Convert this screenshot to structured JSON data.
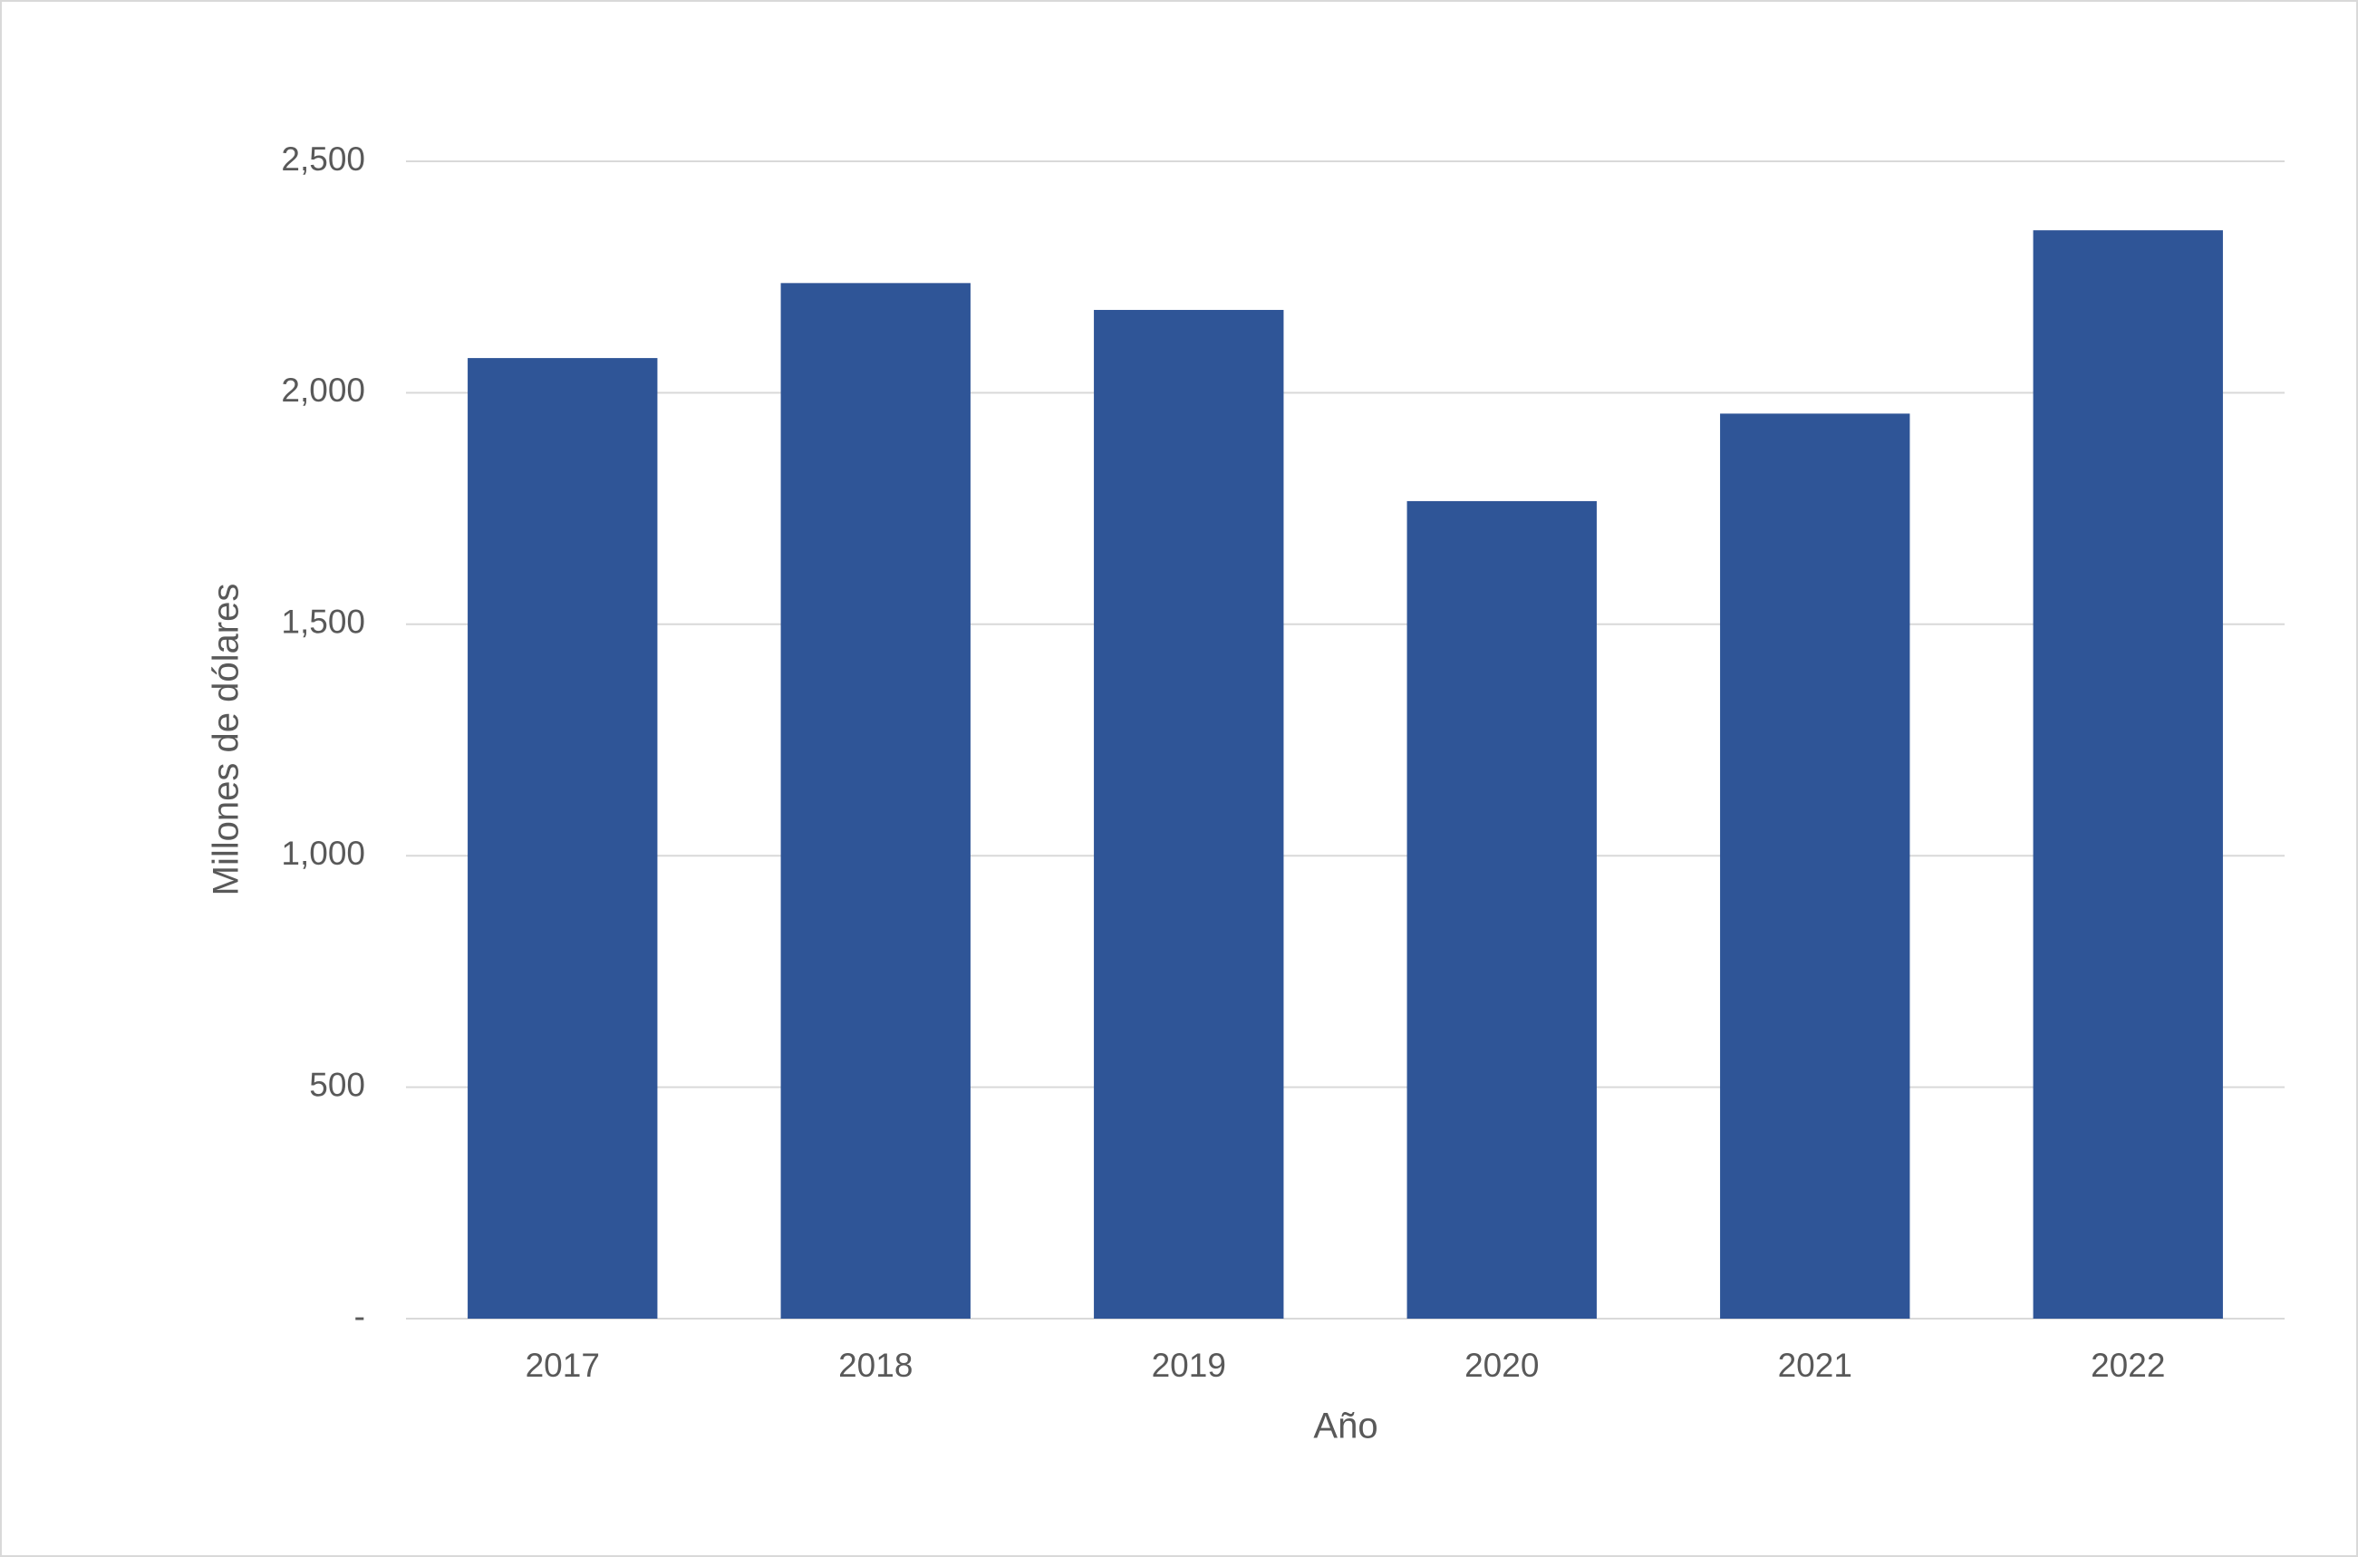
{
  "chart_data": {
    "type": "bar",
    "x_label": "Año",
    "y_label": "Millones de dólares",
    "categories": [
      "2017",
      "2018",
      "2019",
      "2020",
      "2021",
      "2022"
    ],
    "values": [
      2075,
      2237,
      2179,
      1766,
      1955,
      2351
    ],
    "color": "#2f5597",
    "ylim": [
      0,
      2500
    ],
    "yticks": [
      {
        "value": 0,
        "label": "-"
      },
      500,
      {
        "value": 1000,
        "label": "1,000"
      },
      {
        "value": 1500,
        "label": "1,500"
      },
      {
        "value": 2000,
        "label": "2,000"
      },
      {
        "value": 2500,
        "label": "2,500"
      }
    ],
    "grid": true
  }
}
